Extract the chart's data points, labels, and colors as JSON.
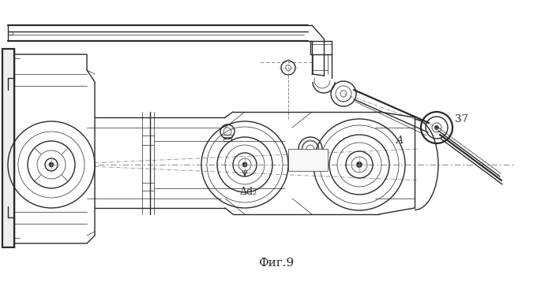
{
  "title": "Фиг.9",
  "label_37": "37",
  "label_A": "A",
  "label_delta_d2": "Δd₂",
  "bg_color": "#ffffff",
  "line_color": "#2a2a2a",
  "fig_width": 6.99,
  "fig_height": 3.58,
  "dpi": 100,
  "lw_main": 1.0,
  "lw_thin": 0.5,
  "lw_thick": 1.6,
  "lw_ultra": 0.3
}
